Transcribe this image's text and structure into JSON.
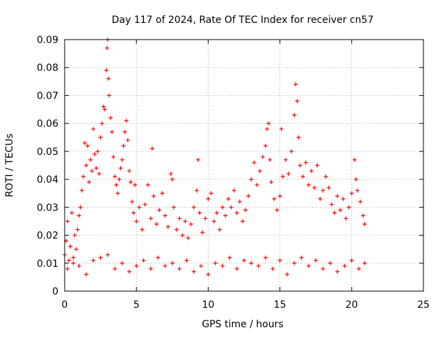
{
  "chart_data": {
    "type": "scatter",
    "title": "Day 117 of 2024, Rate Of TEC Index for receiver cn57",
    "xlabel": "GPS time / hours",
    "ylabel": "ROTI / TECUs",
    "xlim": [
      0,
      25
    ],
    "ylim": [
      0,
      0.09
    ],
    "x_ticks": [
      0,
      5,
      10,
      15,
      20,
      25
    ],
    "x_tick_labels": [
      "0",
      "5",
      "10",
      "15",
      "20",
      "25"
    ],
    "y_ticks": [
      0,
      0.01,
      0.02,
      0.03,
      0.04,
      0.05,
      0.06,
      0.07,
      0.08,
      0.09
    ],
    "y_tick_labels": [
      "0",
      "0.01",
      "0.02",
      "0.03",
      "0.04",
      "0.05",
      "0.06",
      "0.07",
      "0.08",
      "0.09"
    ],
    "grid": true,
    "marker": "plus",
    "series": [
      {
        "color": "#ff0000",
        "points": [
          [
            0.0,
            0.013
          ],
          [
            0.1,
            0.018
          ],
          [
            0.2,
            0.025
          ],
          [
            0.3,
            0.011
          ],
          [
            0.4,
            0.016
          ],
          [
            0.5,
            0.028
          ],
          [
            0.6,
            0.012
          ],
          [
            0.7,
            0.02
          ],
          [
            0.8,
            0.015
          ],
          [
            0.9,
            0.022
          ],
          [
            1.0,
            0.027
          ],
          [
            1.1,
            0.03
          ],
          [
            1.2,
            0.036
          ],
          [
            1.3,
            0.041
          ],
          [
            1.4,
            0.053
          ],
          [
            1.5,
            0.045
          ],
          [
            1.6,
            0.052
          ],
          [
            1.7,
            0.039
          ],
          [
            1.8,
            0.047
          ],
          [
            1.9,
            0.043
          ],
          [
            2.0,
            0.058
          ],
          [
            2.1,
            0.049
          ],
          [
            2.2,
            0.044
          ],
          [
            2.3,
            0.05
          ],
          [
            2.4,
            0.042
          ],
          [
            2.5,
            0.055
          ],
          [
            2.6,
            0.06
          ],
          [
            2.7,
            0.066
          ],
          [
            2.8,
            0.065
          ],
          [
            2.9,
            0.079
          ],
          [
            2.95,
            0.087
          ],
          [
            3.0,
            0.09
          ],
          [
            3.05,
            0.076
          ],
          [
            3.1,
            0.07
          ],
          [
            3.2,
            0.062
          ],
          [
            3.3,
            0.057
          ],
          [
            3.4,
            0.048
          ],
          [
            3.5,
            0.041
          ],
          [
            3.6,
            0.038
          ],
          [
            3.7,
            0.035
          ],
          [
            3.8,
            0.04
          ],
          [
            3.9,
            0.044
          ],
          [
            4.0,
            0.047
          ],
          [
            4.1,
            0.052
          ],
          [
            4.2,
            0.057
          ],
          [
            4.3,
            0.061
          ],
          [
            4.4,
            0.054
          ],
          [
            4.5,
            0.043
          ],
          [
            4.6,
            0.039
          ],
          [
            4.7,
            0.032
          ],
          [
            4.8,
            0.028
          ],
          [
            4.9,
            0.038
          ],
          [
            5.0,
            0.025
          ],
          [
            5.2,
            0.03
          ],
          [
            5.4,
            0.022
          ],
          [
            5.6,
            0.031
          ],
          [
            5.8,
            0.038
          ],
          [
            6.0,
            0.026
          ],
          [
            6.1,
            0.051
          ],
          [
            6.2,
            0.034
          ],
          [
            6.4,
            0.024
          ],
          [
            6.6,
            0.029
          ],
          [
            6.8,
            0.035
          ],
          [
            7.0,
            0.027
          ],
          [
            7.2,
            0.023
          ],
          [
            7.4,
            0.042
          ],
          [
            7.5,
            0.04
          ],
          [
            7.6,
            0.03
          ],
          [
            7.8,
            0.022
          ],
          [
            8.0,
            0.026
          ],
          [
            8.2,
            0.02
          ],
          [
            8.4,
            0.025
          ],
          [
            8.6,
            0.019
          ],
          [
            8.8,
            0.024
          ],
          [
            9.0,
            0.03
          ],
          [
            9.2,
            0.036
          ],
          [
            9.3,
            0.047
          ],
          [
            9.4,
            0.028
          ],
          [
            9.6,
            0.021
          ],
          [
            9.8,
            0.026
          ],
          [
            10.0,
            0.033
          ],
          [
            10.2,
            0.035
          ],
          [
            10.4,
            0.025
          ],
          [
            10.6,
            0.028
          ],
          [
            10.8,
            0.022
          ],
          [
            11.0,
            0.03
          ],
          [
            11.2,
            0.027
          ],
          [
            11.4,
            0.033
          ],
          [
            11.6,
            0.03
          ],
          [
            11.8,
            0.036
          ],
          [
            12.0,
            0.028
          ],
          [
            12.2,
            0.032
          ],
          [
            12.4,
            0.025
          ],
          [
            12.6,
            0.029
          ],
          [
            12.8,
            0.034
          ],
          [
            13.0,
            0.04
          ],
          [
            13.2,
            0.046
          ],
          [
            13.4,
            0.038
          ],
          [
            13.6,
            0.043
          ],
          [
            13.8,
            0.048
          ],
          [
            14.0,
            0.052
          ],
          [
            14.1,
            0.058
          ],
          [
            14.2,
            0.06
          ],
          [
            14.3,
            0.047
          ],
          [
            14.4,
            0.039
          ],
          [
            14.6,
            0.033
          ],
          [
            14.8,
            0.029
          ],
          [
            15.0,
            0.034
          ],
          [
            15.1,
            0.058
          ],
          [
            15.2,
            0.041
          ],
          [
            15.4,
            0.047
          ],
          [
            15.6,
            0.042
          ],
          [
            15.8,
            0.05
          ],
          [
            16.0,
            0.063
          ],
          [
            16.1,
            0.074
          ],
          [
            16.2,
            0.068
          ],
          [
            16.3,
            0.055
          ],
          [
            16.4,
            0.045
          ],
          [
            16.6,
            0.041
          ],
          [
            16.8,
            0.046
          ],
          [
            17.0,
            0.038
          ],
          [
            17.2,
            0.043
          ],
          [
            17.4,
            0.037
          ],
          [
            17.6,
            0.045
          ],
          [
            17.8,
            0.033
          ],
          [
            18.0,
            0.036
          ],
          [
            18.2,
            0.041
          ],
          [
            18.4,
            0.037
          ],
          [
            18.6,
            0.031
          ],
          [
            18.8,
            0.028
          ],
          [
            19.0,
            0.034
          ],
          [
            19.2,
            0.029
          ],
          [
            19.4,
            0.033
          ],
          [
            19.6,
            0.026
          ],
          [
            19.8,
            0.03
          ],
          [
            20.0,
            0.035
          ],
          [
            20.2,
            0.047
          ],
          [
            20.3,
            0.04
          ],
          [
            20.4,
            0.036
          ],
          [
            20.6,
            0.032
          ],
          [
            20.8,
            0.027
          ],
          [
            20.9,
            0.024
          ],
          [
            0.2,
            0.008
          ],
          [
            0.6,
            0.01
          ],
          [
            1.0,
            0.009
          ],
          [
            1.5,
            0.006
          ],
          [
            2.0,
            0.011
          ],
          [
            2.5,
            0.012
          ],
          [
            3.0,
            0.013
          ],
          [
            3.5,
            0.008
          ],
          [
            4.0,
            0.01
          ],
          [
            4.5,
            0.007
          ],
          [
            5.0,
            0.009
          ],
          [
            5.5,
            0.011
          ],
          [
            6.0,
            0.008
          ],
          [
            6.5,
            0.012
          ],
          [
            7.0,
            0.009
          ],
          [
            7.5,
            0.01
          ],
          [
            8.0,
            0.008
          ],
          [
            8.5,
            0.011
          ],
          [
            9.0,
            0.007
          ],
          [
            9.5,
            0.009
          ],
          [
            10.0,
            0.006
          ],
          [
            10.5,
            0.01
          ],
          [
            11.0,
            0.009
          ],
          [
            11.5,
            0.012
          ],
          [
            12.0,
            0.008
          ],
          [
            12.5,
            0.011
          ],
          [
            13.0,
            0.01
          ],
          [
            13.5,
            0.009
          ],
          [
            14.0,
            0.012
          ],
          [
            14.5,
            0.008
          ],
          [
            15.0,
            0.011
          ],
          [
            15.5,
            0.006
          ],
          [
            16.0,
            0.01
          ],
          [
            16.5,
            0.012
          ],
          [
            17.0,
            0.009
          ],
          [
            17.5,
            0.011
          ],
          [
            18.0,
            0.008
          ],
          [
            18.5,
            0.01
          ],
          [
            19.0,
            0.007
          ],
          [
            19.5,
            0.009
          ],
          [
            20.0,
            0.011
          ],
          [
            20.5,
            0.008
          ],
          [
            20.9,
            0.01
          ]
        ]
      }
    ]
  }
}
